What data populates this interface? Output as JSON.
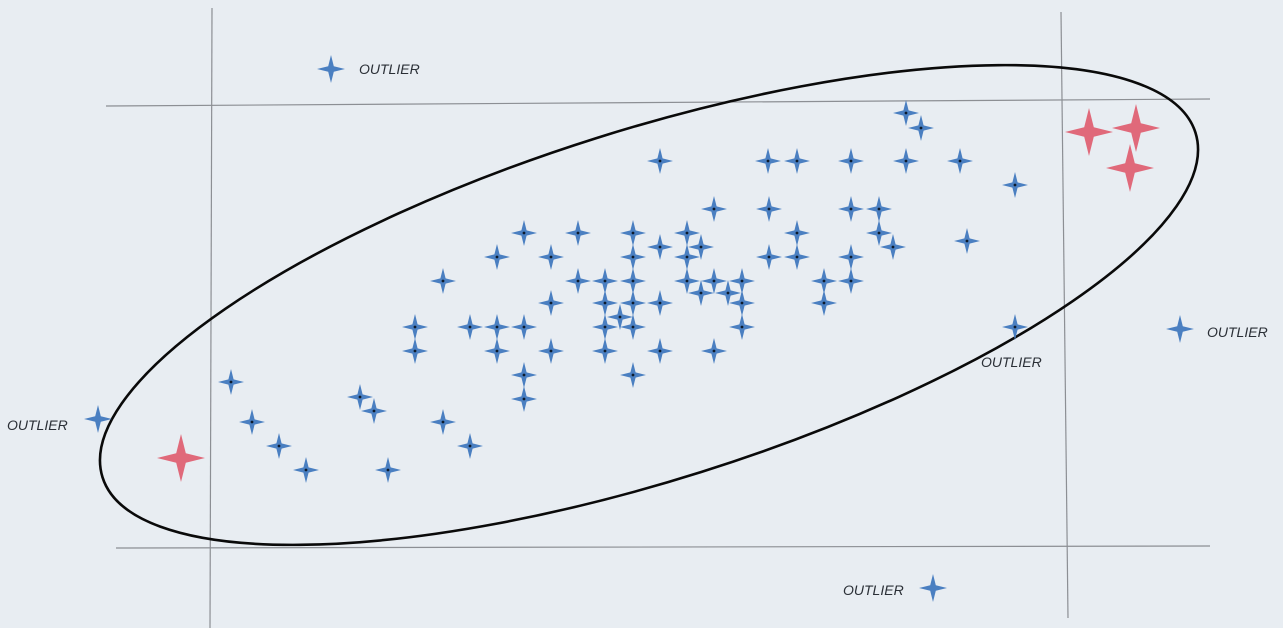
{
  "colors": {
    "background": "#e8edf2",
    "inlier": "#4a7fc1",
    "inlier_center": "#0d1a2b",
    "extreme": "#e0697a",
    "ellipse": "#0a0a0a",
    "boundary": "#8c8f94"
  },
  "icons": {
    "inlier": "four-point-star",
    "outlier": "four-point-star",
    "extreme": "four-point-star"
  },
  "labels": {
    "outlier_top_left": "OUTLIER",
    "outlier_left": "OUTLIER",
    "outlier_right": "OUTLIER",
    "outlier_inside_right": "OUTLIER",
    "outlier_bottom": "OUTLIER"
  }
}
